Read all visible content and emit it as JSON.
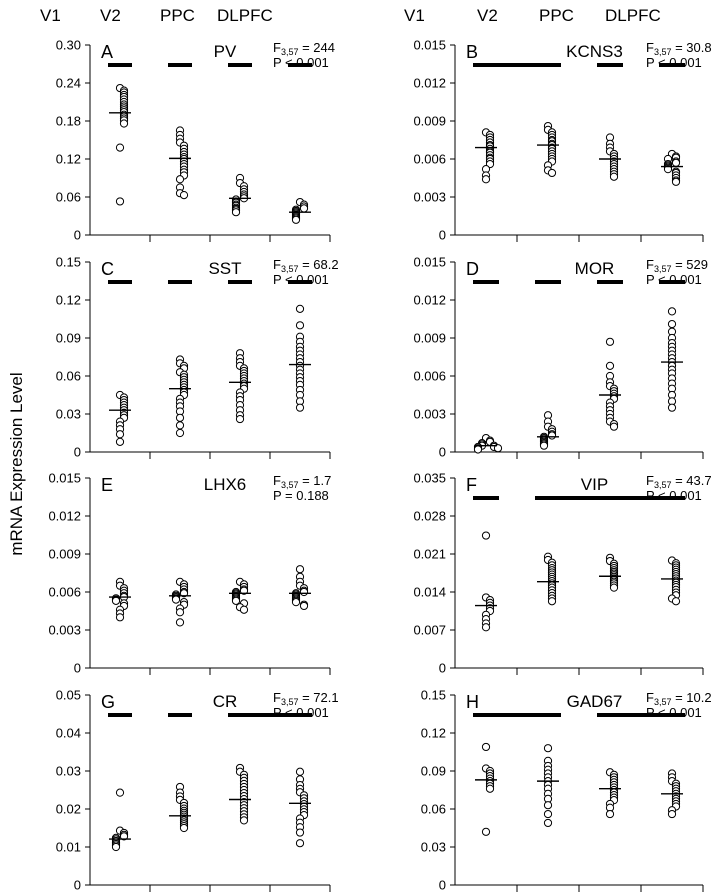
{
  "figure": {
    "y_axis_label": "mRNA Expression Level",
    "column_headers": [
      "V1",
      "V2",
      "PPC",
      "DLPFC"
    ]
  },
  "chart_data": [
    {
      "type": "scatter",
      "panel": "A",
      "gene": "PV",
      "stat_f": "F",
      "stat_sub": "3,57",
      "stat_f_value": " = 244",
      "stat_p": "P < 0.001",
      "categories": [
        "V1",
        "V2",
        "PPC",
        "DLPFC"
      ],
      "ylim": [
        0,
        0.3
      ],
      "yticks": [
        0,
        0.06,
        0.12,
        0.18,
        0.24,
        0.3
      ],
      "ytick_labels": [
        "0",
        "0.06",
        "0.12",
        "0.18",
        "0.24",
        "0.30"
      ],
      "means": [
        0.193,
        0.121,
        0.058,
        0.036
      ],
      "points": [
        [
          0.232,
          0.228,
          0.225,
          0.221,
          0.218,
          0.214,
          0.21,
          0.206,
          0.203,
          0.2,
          0.197,
          0.194,
          0.19,
          0.187,
          0.184,
          0.181,
          0.176,
          0.138,
          0.053
        ],
        [
          0.165,
          0.158,
          0.152,
          0.146,
          0.141,
          0.136,
          0.131,
          0.127,
          0.123,
          0.12,
          0.116,
          0.112,
          0.108,
          0.103,
          0.099,
          0.094,
          0.088,
          0.075,
          0.066,
          0.063
        ],
        [
          0.09,
          0.082,
          0.077,
          0.072,
          0.068,
          0.064,
          0.061,
          0.058,
          0.056,
          0.053,
          0.051,
          0.048,
          0.046,
          0.043,
          0.041,
          0.039,
          0.036
        ],
        [
          0.052,
          0.048,
          0.045,
          0.042,
          0.04,
          0.038,
          0.036,
          0.034,
          0.032,
          0.03,
          0.028,
          0.026,
          0.024
        ]
      ],
      "groups": [
        [
          0,
          0
        ],
        [
          1,
          1
        ],
        [
          2,
          2
        ],
        [
          3,
          3
        ]
      ]
    },
    {
      "type": "scatter",
      "panel": "B",
      "gene": "KCNS3",
      "stat_f": "F",
      "stat_sub": "3,57",
      "stat_f_value": " = 30.8",
      "stat_p": "P < 0.001",
      "categories": [
        "V1",
        "V2",
        "PPC",
        "DLPFC"
      ],
      "ylim": [
        0,
        0.015
      ],
      "yticks": [
        0,
        0.003,
        0.006,
        0.009,
        0.012,
        0.015
      ],
      "ytick_labels": [
        "0",
        "0.003",
        "0.006",
        "0.009",
        "0.012",
        "0.015"
      ],
      "means": [
        0.0069,
        0.0071,
        0.006,
        0.0054
      ],
      "points": [
        [
          0.0081,
          0.0079,
          0.0077,
          0.0075,
          0.0073,
          0.0071,
          0.007,
          0.0068,
          0.0066,
          0.0065,
          0.0063,
          0.0061,
          0.006,
          0.0058,
          0.0056,
          0.0052,
          0.0047,
          0.0044
        ],
        [
          0.0086,
          0.0083,
          0.0081,
          0.0079,
          0.0077,
          0.0075,
          0.0074,
          0.0072,
          0.0071,
          0.0069,
          0.0068,
          0.0066,
          0.0064,
          0.0062,
          0.006,
          0.0058,
          0.0055,
          0.0051,
          0.0049
        ],
        [
          0.0077,
          0.0072,
          0.0069,
          0.0066,
          0.0064,
          0.0062,
          0.006,
          0.0058,
          0.0056,
          0.0054,
          0.0052,
          0.005,
          0.0048,
          0.0046
        ],
        [
          0.0064,
          0.0062,
          0.0061,
          0.006,
          0.0058,
          0.0057,
          0.0056,
          0.0055,
          0.0054,
          0.0053,
          0.0052,
          0.005,
          0.0049,
          0.0047,
          0.0045,
          0.0043,
          0.0042
        ]
      ],
      "groups": [
        [
          0,
          1
        ],
        [
          2,
          2
        ],
        [
          3,
          3
        ]
      ]
    },
    {
      "type": "scatter",
      "panel": "C",
      "gene": "SST",
      "stat_f": "F",
      "stat_sub": "3,57",
      "stat_f_value": " = 68.2",
      "stat_p": "P < 0.001",
      "categories": [
        "V1",
        "V2",
        "PPC",
        "DLPFC"
      ],
      "ylim": [
        0,
        0.15
      ],
      "yticks": [
        0,
        0.03,
        0.06,
        0.09,
        0.12,
        0.15
      ],
      "ytick_labels": [
        "0",
        "0.03",
        "0.06",
        "0.09",
        "0.12",
        "0.15"
      ],
      "means": [
        0.033,
        0.05,
        0.055,
        0.069
      ],
      "points": [
        [
          0.045,
          0.043,
          0.041,
          0.039,
          0.037,
          0.035,
          0.033,
          0.031,
          0.029,
          0.027,
          0.024,
          0.021,
          0.018,
          0.014,
          0.008
        ],
        [
          0.073,
          0.07,
          0.068,
          0.066,
          0.063,
          0.061,
          0.059,
          0.057,
          0.055,
          0.053,
          0.051,
          0.049,
          0.047,
          0.045,
          0.042,
          0.039,
          0.036,
          0.032,
          0.027,
          0.021,
          0.015
        ],
        [
          0.078,
          0.074,
          0.071,
          0.068,
          0.066,
          0.064,
          0.062,
          0.06,
          0.058,
          0.056,
          0.054,
          0.052,
          0.05,
          0.047,
          0.044,
          0.041,
          0.037,
          0.033,
          0.029,
          0.026
        ],
        [
          0.113,
          0.1,
          0.091,
          0.087,
          0.083,
          0.08,
          0.077,
          0.074,
          0.071,
          0.068,
          0.065,
          0.062,
          0.059,
          0.056,
          0.053,
          0.049,
          0.045,
          0.04,
          0.035
        ]
      ],
      "groups": [
        [
          0,
          0
        ],
        [
          1,
          1
        ],
        [
          2,
          2
        ],
        [
          3,
          3
        ]
      ]
    },
    {
      "type": "scatter",
      "panel": "D",
      "gene": "MOR",
      "stat_f": "F",
      "stat_sub": "3,57",
      "stat_f_value": " = 529",
      "stat_p": "P < 0.001",
      "categories": [
        "V1",
        "V2",
        "PPC",
        "DLPFC"
      ],
      "ylim": [
        0,
        0.015
      ],
      "yticks": [
        0,
        0.003,
        0.006,
        0.009,
        0.012,
        0.015
      ],
      "ytick_labels": [
        "0",
        "0.003",
        "0.006",
        "0.009",
        "0.012",
        "0.015"
      ],
      "means": [
        0.0005,
        0.0012,
        0.0045,
        0.0071
      ],
      "points": [
        [
          0.0011,
          0.0009,
          0.0008,
          0.0007,
          0.0006,
          0.0005,
          0.0005,
          0.0004,
          0.0004,
          0.0003,
          0.0003,
          0.0002
        ],
        [
          0.0029,
          0.0024,
          0.002,
          0.0018,
          0.0016,
          0.0014,
          0.0013,
          0.0012,
          0.0011,
          0.001,
          0.0009,
          0.0008,
          0.0007,
          0.0006,
          0.0005
        ],
        [
          0.0087,
          0.0068,
          0.006,
          0.0055,
          0.0052,
          0.005,
          0.0048,
          0.0046,
          0.0044,
          0.0042,
          0.0039,
          0.0036,
          0.0033,
          0.003,
          0.0027,
          0.0024,
          0.0022,
          0.002
        ],
        [
          0.0111,
          0.0101,
          0.0095,
          0.009,
          0.0086,
          0.0083,
          0.008,
          0.0077,
          0.0074,
          0.0071,
          0.0068,
          0.0065,
          0.0062,
          0.0058,
          0.0054,
          0.005,
          0.0045,
          0.004,
          0.0035
        ]
      ],
      "groups": [
        [
          0,
          0
        ],
        [
          1,
          1
        ],
        [
          2,
          2
        ],
        [
          3,
          3
        ]
      ]
    },
    {
      "type": "scatter",
      "panel": "E",
      "gene": "LHX6",
      "stat_f": "F",
      "stat_sub": "3,57",
      "stat_f_value": " = 1.7",
      "stat_p": "P = 0.188",
      "categories": [
        "V1",
        "V2",
        "PPC",
        "DLPFC"
      ],
      "ylim": [
        0,
        0.015
      ],
      "yticks": [
        0,
        0.003,
        0.006,
        0.009,
        0.012,
        0.015
      ],
      "ytick_labels": [
        "0",
        "0.003",
        "0.006",
        "0.009",
        "0.012",
        "0.015"
      ],
      "means": [
        0.0056,
        0.0057,
        0.0059,
        0.0059
      ],
      "points": [
        [
          0.0068,
          0.0065,
          0.0063,
          0.0061,
          0.0059,
          0.0057,
          0.0056,
          0.0055,
          0.0054,
          0.0053,
          0.0051,
          0.0049,
          0.0046,
          0.0043,
          0.004
        ],
        [
          0.0068,
          0.0066,
          0.0064,
          0.0062,
          0.006,
          0.0059,
          0.0058,
          0.0057,
          0.0056,
          0.0055,
          0.0054,
          0.0052,
          0.005,
          0.0047,
          0.0044,
          0.0036
        ],
        [
          0.0068,
          0.0066,
          0.0064,
          0.0062,
          0.0061,
          0.006,
          0.0059,
          0.0058,
          0.0057,
          0.0056,
          0.0055,
          0.0054,
          0.0053,
          0.0051,
          0.0048,
          0.0046
        ],
        [
          0.0078,
          0.0072,
          0.0068,
          0.0065,
          0.0063,
          0.0061,
          0.006,
          0.0059,
          0.0058,
          0.0057,
          0.0056,
          0.0055,
          0.0054,
          0.0053,
          0.0052,
          0.005,
          0.0049
        ]
      ],
      "groups": []
    },
    {
      "type": "scatter",
      "panel": "F",
      "gene": "VIP",
      "stat_f": "F",
      "stat_sub": "3,57",
      "stat_f_value": " = 43.7",
      "stat_p": "P < 0.001",
      "categories": [
        "V1",
        "V2",
        "PPC",
        "DLPFC"
      ],
      "ylim": [
        0,
        0.035
      ],
      "yticks": [
        0,
        0.007,
        0.014,
        0.021,
        0.028,
        0.035
      ],
      "ytick_labels": [
        "0",
        "0.007",
        "0.014",
        "0.021",
        "0.028",
        "0.035"
      ],
      "means": [
        0.0115,
        0.0159,
        0.0169,
        0.0164
      ],
      "points": [
        [
          0.0244,
          0.013,
          0.0125,
          0.012,
          0.0115,
          0.011,
          0.0105,
          0.0098,
          0.009,
          0.0082,
          0.0075
        ],
        [
          0.0205,
          0.0199,
          0.0194,
          0.0189,
          0.0184,
          0.018,
          0.0176,
          0.0172,
          0.0168,
          0.0164,
          0.016,
          0.0156,
          0.0152,
          0.0148,
          0.0143,
          0.0138,
          0.0133,
          0.0128,
          0.0123
        ],
        [
          0.0203,
          0.0197,
          0.0192,
          0.0188,
          0.0184,
          0.018,
          0.0177,
          0.0174,
          0.0171,
          0.0168,
          0.0165,
          0.0162,
          0.0159,
          0.0156,
          0.0152,
          0.0148
        ],
        [
          0.0198,
          0.0193,
          0.0189,
          0.0185,
          0.0181,
          0.0177,
          0.0173,
          0.0169,
          0.0165,
          0.0161,
          0.0157,
          0.0153,
          0.0149,
          0.0144,
          0.0139,
          0.0134,
          0.0128,
          0.0123
        ]
      ],
      "groups": [
        [
          0,
          0
        ],
        [
          1,
          3
        ]
      ]
    },
    {
      "type": "scatter",
      "panel": "G",
      "gene": "CR",
      "stat_f": "F",
      "stat_sub": "3,57",
      "stat_f_value": " = 72.1",
      "stat_p": "P < 0.001",
      "categories": [
        "V1",
        "V2",
        "PPC",
        "DLPFC"
      ],
      "ylim": [
        0,
        0.05
      ],
      "yticks": [
        0,
        0.01,
        0.02,
        0.03,
        0.04,
        0.05
      ],
      "ytick_labels": [
        "0",
        "0.01",
        "0.02",
        "0.03",
        "0.04",
        "0.05"
      ],
      "means": [
        0.0121,
        0.0182,
        0.0225,
        0.0215
      ],
      "points": [
        [
          0.0243,
          0.0143,
          0.0137,
          0.0132,
          0.0128,
          0.0124,
          0.012,
          0.0116,
          0.0112,
          0.0108,
          0.0104,
          0.01
        ],
        [
          0.0258,
          0.0243,
          0.0233,
          0.0224,
          0.0216,
          0.0208,
          0.0201,
          0.0195,
          0.019,
          0.0185,
          0.018,
          0.0175,
          0.017,
          0.0165,
          0.016,
          0.0155,
          0.015
        ],
        [
          0.0308,
          0.0298,
          0.029,
          0.0282,
          0.0274,
          0.0266,
          0.0258,
          0.025,
          0.0242,
          0.0234,
          0.0226,
          0.0218,
          0.021,
          0.0202,
          0.0194,
          0.0186,
          0.0178,
          0.017
        ],
        [
          0.0298,
          0.0278,
          0.0263,
          0.0253,
          0.0244,
          0.0236,
          0.0228,
          0.022,
          0.0213,
          0.0206,
          0.0199,
          0.0192,
          0.0184,
          0.0175,
          0.0164,
          0.0152,
          0.0138,
          0.011
        ]
      ],
      "groups": [
        [
          0,
          0
        ],
        [
          1,
          1
        ],
        [
          2,
          3
        ]
      ]
    },
    {
      "type": "scatter",
      "panel": "H",
      "gene": "GAD67",
      "stat_f": "F",
      "stat_sub": "3,57",
      "stat_f_value": " = 10.2",
      "stat_p": "P < 0.001",
      "categories": [
        "V1",
        "V2",
        "PPC",
        "DLPFC"
      ],
      "ylim": [
        0,
        0.15
      ],
      "yticks": [
        0,
        0.03,
        0.06,
        0.09,
        0.12,
        0.15
      ],
      "ytick_labels": [
        "0",
        "0.03",
        "0.06",
        "0.09",
        "0.12",
        "0.15"
      ],
      "means": [
        0.083,
        0.082,
        0.076,
        0.072
      ],
      "points": [
        [
          0.109,
          0.092,
          0.09,
          0.088,
          0.086,
          0.084,
          0.082,
          0.08,
          0.078,
          0.076,
          0.042
        ],
        [
          0.108,
          0.098,
          0.094,
          0.091,
          0.088,
          0.085,
          0.082,
          0.079,
          0.076,
          0.072,
          0.068,
          0.063,
          0.056,
          0.049
        ],
        [
          0.089,
          0.087,
          0.085,
          0.083,
          0.081,
          0.079,
          0.077,
          0.075,
          0.073,
          0.071,
          0.069,
          0.067,
          0.064,
          0.061,
          0.056
        ],
        [
          0.088,
          0.085,
          0.082,
          0.08,
          0.078,
          0.076,
          0.074,
          0.072,
          0.07,
          0.068,
          0.066,
          0.064,
          0.062,
          0.059,
          0.056
        ]
      ],
      "groups": [
        [
          0,
          1
        ],
        [
          2,
          3
        ]
      ]
    }
  ]
}
